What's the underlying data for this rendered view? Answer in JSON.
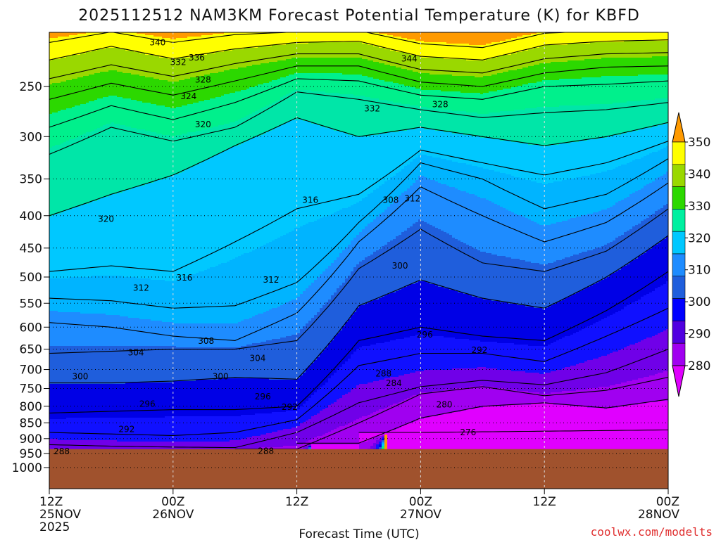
{
  "chart_data": {
    "type": "contour-cross-section",
    "title": "2025112512 NAM3KM Forecast Potential Temperature (K) for KBFD",
    "xlabel": "Forecast Time (UTC)",
    "y_scale": "log-pressure",
    "y_ticks": [
      250,
      300,
      350,
      400,
      450,
      500,
      550,
      600,
      650,
      700,
      750,
      800,
      850,
      900,
      950,
      1000
    ],
    "x_ticks": [
      {
        "line1": "12Z",
        "line2": "25NOV",
        "line3": "2025"
      },
      {
        "line1": "00Z",
        "line2": "26NOV",
        "line3": ""
      },
      {
        "line1": "12Z",
        "line2": "",
        "line3": ""
      },
      {
        "line1": "00Z",
        "line2": "27NOV",
        "line3": ""
      },
      {
        "line1": "12Z",
        "line2": "",
        "line3": ""
      },
      {
        "line1": "00Z",
        "line2": "28NOV",
        "line3": ""
      }
    ],
    "x_hours": [
      0,
      6,
      12,
      18,
      24,
      30,
      36,
      42,
      48,
      54,
      60
    ],
    "levels": [
      276,
      280,
      284,
      288,
      292,
      296,
      300,
      304,
      308,
      312,
      316,
      320,
      324,
      328,
      332,
      336,
      340,
      344
    ],
    "isentrope_pressures": {
      "276": [
        null,
        null,
        null,
        null,
        null,
        null,
        880,
        878,
        876,
        874,
        872
      ],
      "280": [
        null,
        null,
        null,
        null,
        null,
        915,
        835,
        800,
        790,
        805,
        780
      ],
      "284": [
        null,
        null,
        null,
        null,
        935,
        850,
        765,
        745,
        770,
        755,
        720
      ],
      "288": [
        920,
        925,
        928,
        930,
        880,
        790,
        745,
        728,
        740,
        708,
        650
      ],
      "292": [
        880,
        885,
        890,
        880,
        840,
        690,
        660,
        660,
        680,
        620,
        560
      ],
      "296": [
        820,
        815,
        810,
        810,
        800,
        630,
        600,
        620,
        630,
        565,
        490
      ],
      "300": [
        735,
        735,
        730,
        720,
        725,
        555,
        505,
        540,
        560,
        500,
        430
      ],
      "304": [
        660,
        655,
        650,
        650,
        630,
        485,
        420,
        475,
        490,
        455,
        390
      ],
      "308": [
        590,
        600,
        620,
        630,
        570,
        440,
        360,
        400,
        440,
        410,
        355
      ],
      "312": [
        540,
        545,
        560,
        555,
        510,
        410,
        330,
        350,
        390,
        370,
        325
      ],
      "316": [
        490,
        480,
        490,
        440,
        390,
        370,
        315,
        330,
        345,
        330,
        305
      ],
      "320": [
        400,
        370,
        345,
        310,
        280,
        300,
        290,
        300,
        310,
        300,
        285
      ],
      "324": [
        320,
        290,
        305,
        290,
        255,
        262,
        272,
        280,
        275,
        272,
        265
      ],
      "328": [
        290,
        268,
        282,
        265,
        243,
        245,
        258,
        262,
        250,
        248,
        245
      ],
      "332": [
        262,
        247,
        258,
        245,
        232,
        232,
        246,
        250,
        238,
        233,
        232
      ],
      "336": [
        243,
        231,
        241,
        230,
        222,
        222,
        235,
        238,
        226,
        222,
        221
      ],
      "340": [
        227,
        216,
        226,
        218,
        213,
        212,
        224,
        227,
        215,
        212,
        211
      ],
      "344": [
        213,
        205,
        213,
        207,
        205,
        204,
        214,
        217,
        206,
        204,
        203
      ]
    },
    "contour_labels": [
      {
        "text": "340",
        "h": 10.5,
        "p": 213
      },
      {
        "text": "336",
        "h": 14.3,
        "p": 225
      },
      {
        "text": "332",
        "h": 12.5,
        "p": 229
      },
      {
        "text": "344",
        "h": 34.9,
        "p": 226
      },
      {
        "text": "328",
        "h": 14.9,
        "p": 244
      },
      {
        "text": "324",
        "h": 13.5,
        "p": 259
      },
      {
        "text": "332",
        "h": 31.3,
        "p": 271
      },
      {
        "text": "328",
        "h": 37.9,
        "p": 267
      },
      {
        "text": "320",
        "h": 14.9,
        "p": 287
      },
      {
        "text": "316",
        "h": 25.3,
        "p": 378
      },
      {
        "text": "308",
        "h": 33.1,
        "p": 378
      },
      {
        "text": "312",
        "h": 35.2,
        "p": 376
      },
      {
        "text": "320",
        "h": 5.5,
        "p": 405
      },
      {
        "text": "300",
        "h": 34.0,
        "p": 480
      },
      {
        "text": "316",
        "h": 13.1,
        "p": 501
      },
      {
        "text": "312",
        "h": 8.9,
        "p": 520
      },
      {
        "text": "312",
        "h": 21.5,
        "p": 505
      },
      {
        "text": "296",
        "h": 36.4,
        "p": 617
      },
      {
        "text": "308",
        "h": 15.2,
        "p": 631
      },
      {
        "text": "292",
        "h": 41.7,
        "p": 652
      },
      {
        "text": "304",
        "h": 8.4,
        "p": 658
      },
      {
        "text": "304",
        "h": 20.2,
        "p": 672
      },
      {
        "text": "288",
        "h": 32.4,
        "p": 711
      },
      {
        "text": "284",
        "h": 33.4,
        "p": 736
      },
      {
        "text": "300",
        "h": 3.0,
        "p": 718
      },
      {
        "text": "300",
        "h": 16.6,
        "p": 718
      },
      {
        "text": "280",
        "h": 38.3,
        "p": 795
      },
      {
        "text": "296",
        "h": 9.5,
        "p": 793
      },
      {
        "text": "296",
        "h": 20.7,
        "p": 772
      },
      {
        "text": "292",
        "h": 23.3,
        "p": 803
      },
      {
        "text": "276",
        "h": 40.6,
        "p": 880
      },
      {
        "text": "292",
        "h": 7.5,
        "p": 870
      },
      {
        "text": "288",
        "h": 1.2,
        "p": 943
      },
      {
        "text": "288",
        "h": 21.0,
        "p": 942
      }
    ],
    "colorbar": {
      "labels": [
        "350",
        "340",
        "330",
        "320",
        "310",
        "300",
        "290",
        "280"
      ],
      "colors": [
        "#ff9a00",
        "#ffff00",
        "#9ad800",
        "#2cd800",
        "#00f0a0",
        "#00c8ff",
        "#1e8cff",
        "#1f5edc",
        "#0000ff",
        "#5000e0",
        "#a000f0",
        "#e000ff"
      ]
    },
    "fill_bands": [
      {
        "min": 0,
        "max": 280,
        "color": "#e000ff"
      },
      {
        "min": 280,
        "max": 285,
        "color": "#a000f0"
      },
      {
        "min": 285,
        "max": 290,
        "color": "#7000e8"
      },
      {
        "min": 290,
        "max": 295,
        "color": "#1010ff"
      },
      {
        "min": 295,
        "max": 300,
        "color": "#0000e6"
      },
      {
        "min": 300,
        "max": 305,
        "color": "#1f5edc"
      },
      {
        "min": 305,
        "max": 310,
        "color": "#1e8cff"
      },
      {
        "min": 310,
        "max": 315,
        "color": "#00b4ff"
      },
      {
        "min": 315,
        "max": 320,
        "color": "#00c8ff"
      },
      {
        "min": 320,
        "max": 325,
        "color": "#00e6a8"
      },
      {
        "min": 325,
        "max": 330,
        "color": "#00f08c"
      },
      {
        "min": 330,
        "max": 335,
        "color": "#2cd800"
      },
      {
        "min": 335,
        "max": 340,
        "color": "#9ad800"
      },
      {
        "min": 340,
        "max": 345,
        "color": "#ffff00"
      },
      {
        "min": 345,
        "max": 999,
        "color": "#ff9a00"
      }
    ],
    "ground_color": "#a0522d",
    "ground_top_pressure": 935,
    "credit": "coolwx.com/modelts"
  }
}
